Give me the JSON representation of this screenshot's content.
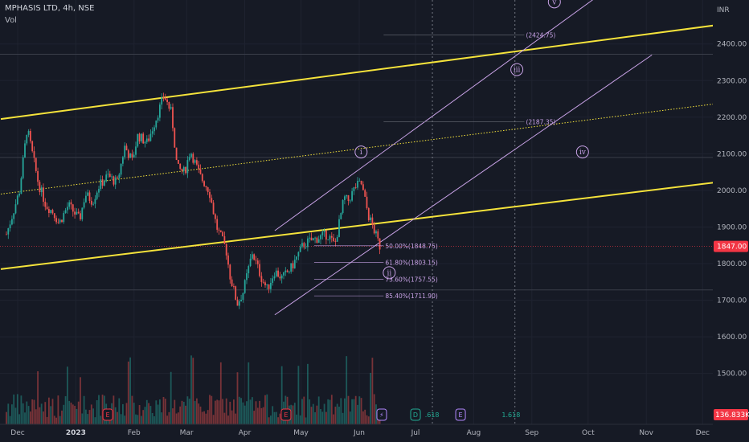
{
  "header": {
    "title": "MPHASIS LTD, 4h, NSE",
    "vol_label": "Vol"
  },
  "axis": {
    "currency": "INR"
  },
  "chart_data": {
    "type": "candlestick",
    "title": "MPHASIS LTD, 4h, NSE",
    "y_ticks": [
      1500,
      1600,
      1700,
      1800,
      1900,
      2000,
      2100,
      2200,
      2300,
      2400
    ],
    "y_tick_labels": [
      "1500.00",
      "1600.00",
      "1700.00",
      "1800.00",
      "1900.00",
      "2000.00",
      "2100.00",
      "2200.00",
      "2300.00",
      "2400.00"
    ],
    "ylim": [
      1410,
      2540
    ],
    "x_labels": [
      {
        "label": "Dec",
        "date": "2022-12-01"
      },
      {
        "label": "2023",
        "date": "2023-01-01",
        "bold": true
      },
      {
        "label": "Feb",
        "date": "2023-02-01"
      },
      {
        "label": "Mar",
        "date": "2023-03-01"
      },
      {
        "label": "Apr",
        "date": "2023-04-01"
      },
      {
        "label": "May",
        "date": "2023-05-01"
      },
      {
        "label": "Jun",
        "date": "2023-06-01"
      },
      {
        "label": "Jul",
        "date": "2023-07-01"
      },
      {
        "label": "Aug",
        "date": "2023-08-01"
      },
      {
        "label": "Sep",
        "date": "2023-09-01"
      },
      {
        "label": "Oct",
        "date": "2023-10-01"
      },
      {
        "label": "Nov",
        "date": "2023-11-01"
      },
      {
        "label": "Dec",
        "date": "2023-12-01"
      }
    ],
    "price_path": [
      [
        "2022-11-25",
        1880
      ],
      [
        "2022-11-28",
        1930
      ],
      [
        "2022-12-02",
        2000
      ],
      [
        "2022-12-06",
        2170
      ],
      [
        "2022-12-08",
        2120
      ],
      [
        "2022-12-12",
        2020
      ],
      [
        "2022-12-16",
        1960
      ],
      [
        "2022-12-20",
        1940
      ],
      [
        "2022-12-23",
        1910
      ],
      [
        "2022-12-28",
        1960
      ],
      [
        "2023-01-03",
        1920
      ],
      [
        "2023-01-06",
        1990
      ],
      [
        "2023-01-10",
        1970
      ],
      [
        "2023-01-13",
        2010
      ],
      [
        "2023-01-18",
        2040
      ],
      [
        "2023-01-23",
        2020
      ],
      [
        "2023-01-27",
        2120
      ],
      [
        "2023-01-31",
        2080
      ],
      [
        "2023-02-03",
        2150
      ],
      [
        "2023-02-08",
        2130
      ],
      [
        "2023-02-13",
        2200
      ],
      [
        "2023-02-17",
        2260
      ],
      [
        "2023-02-21",
        2210
      ],
      [
        "2023-02-24",
        2060
      ],
      [
        "2023-02-28",
        2050
      ],
      [
        "2023-03-03",
        2110
      ],
      [
        "2023-03-08",
        2040
      ],
      [
        "2023-03-13",
        2000
      ],
      [
        "2023-03-17",
        1900
      ],
      [
        "2023-03-22",
        1840
      ],
      [
        "2023-03-24",
        1770
      ],
      [
        "2023-03-28",
        1690
      ],
      [
        "2023-03-31",
        1720
      ],
      [
        "2023-04-05",
        1830
      ],
      [
        "2023-04-10",
        1760
      ],
      [
        "2023-04-13",
        1730
      ],
      [
        "2023-04-17",
        1780
      ],
      [
        "2023-04-21",
        1760
      ],
      [
        "2023-04-26",
        1790
      ],
      [
        "2023-05-02",
        1850
      ],
      [
        "2023-05-05",
        1860
      ],
      [
        "2023-05-10",
        1870
      ],
      [
        "2023-05-15",
        1880
      ],
      [
        "2023-05-19",
        1850
      ],
      [
        "2023-05-24",
        1980
      ],
      [
        "2023-05-26",
        1970
      ],
      [
        "2023-05-30",
        2010
      ],
      [
        "2023-06-02",
        2020
      ],
      [
        "2023-06-06",
        1930
      ],
      [
        "2023-06-09",
        1890
      ],
      [
        "2023-06-12",
        1847
      ]
    ],
    "last_price": {
      "value": 1847,
      "label": "1847.00",
      "color": "#f23645"
    },
    "volume_tag": {
      "label": "136.833K",
      "color": "#f23645"
    },
    "fib_levels": [
      {
        "label": "50.00%(1848.75)",
        "value": 1848.75
      },
      {
        "label": "61.80%(1803.15)",
        "value": 1803.15
      },
      {
        "label": "73.60%(1757.55)",
        "value": 1757.55
      },
      {
        "label": "85.40%(1711.90)",
        "value": 1711.9
      }
    ],
    "targets": [
      {
        "label": "(2424.75)",
        "value": 2424.75
      },
      {
        "label": "(2187.35)",
        "value": 2187.35
      }
    ],
    "horizontal_lines": [
      2372,
      2090,
      1728
    ],
    "waves": [
      {
        "label": "i",
        "date": "2023-06-02",
        "value": 2105
      },
      {
        "label": "ii",
        "date": "2023-06-17",
        "value": 1775
      },
      {
        "label": "iii",
        "date": "2023-08-24",
        "value": 2330
      },
      {
        "label": "iv",
        "date": "2023-09-28",
        "value": 2105
      },
      {
        "label": "v",
        "date": "2023-09-13",
        "value": 2515
      }
    ],
    "channels": {
      "major_upper": [
        [
          "2022-11-22",
          2195
        ],
        [
          "2023-12-21",
          2460
        ]
      ],
      "major_lower": [
        [
          "2022-11-22",
          1785
        ],
        [
          "2023-12-21",
          2030
        ]
      ],
      "major_mid": [
        [
          "2022-11-22",
          1990
        ],
        [
          "2023-12-21",
          2245
        ]
      ],
      "minor_upper": [
        [
          "2023-04-17",
          1890
        ],
        [
          "2023-10-10",
          2545
        ]
      ],
      "minor_lower": [
        [
          "2023-04-17",
          1660
        ],
        [
          "2023-11-04",
          2370
        ]
      ]
    },
    "vertical_markers": [
      "2023-07-10",
      "2023-08-23"
    ],
    "events": [
      {
        "label": "E",
        "date": "2023-01-18",
        "color": "#f23645"
      },
      {
        "label": "E",
        "date": "2023-04-23",
        "color": "#f23645"
      },
      {
        "label": "⚡",
        "date": "2023-06-13",
        "color": "#b388ff"
      },
      {
        "label": "D",
        "date": "2023-07-01",
        "color": "#22ab94"
      },
      {
        "label": "E",
        "date": "2023-07-25",
        "color": "#b388ff"
      }
    ],
    "fib_ext_labels": [
      {
        "label": ".618",
        "date": "2023-07-06",
        "color": "#22ab94"
      },
      {
        "label": "1.618",
        "date": "2023-08-16",
        "color": "#22ab94"
      }
    ],
    "colors": {
      "up": "#26a69a",
      "down": "#ef5350",
      "channel": "#f5e33b",
      "minor": "#c8a2e6",
      "background": "#161a25"
    }
  }
}
